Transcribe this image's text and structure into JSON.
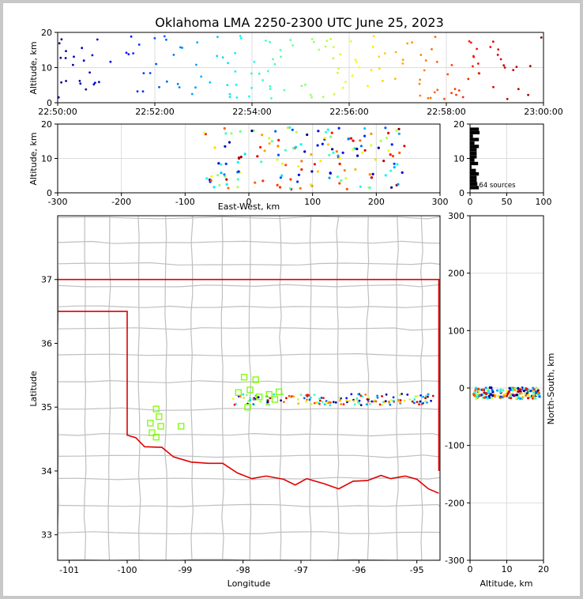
{
  "title": "Oklahoma LMA 2250-2300 UTC June 25, 2023",
  "colors": {
    "axes": "#000000",
    "grid": "#dddddd",
    "counties": "#bfbfbf",
    "state_border": "#e00000",
    "stations": "#7cfc00"
  },
  "chart_data": [
    {
      "panel": "time-height",
      "type": "scatter",
      "ylabel": "Altitude, km",
      "xlim": [
        "22:50:00",
        "23:00:00"
      ],
      "ylim": [
        0,
        20
      ],
      "xticks": [
        "22:50:00",
        "22:52:00",
        "22:54:00",
        "22:56:00",
        "22:58:00",
        "23:00:00"
      ],
      "yticks": [
        "0",
        "10",
        "20"
      ],
      "grid": true
    },
    {
      "panel": "east-west-height",
      "type": "scatter",
      "xlabel": "East-West, km",
      "ylabel": "Altitude, km",
      "xlim": [
        -300,
        300
      ],
      "ylim": [
        0,
        20
      ],
      "xticks": [
        "-300",
        "-200",
        "-100",
        "0",
        "100",
        "200",
        "300"
      ],
      "yticks": [
        "0",
        "10",
        "20"
      ],
      "grid": true
    },
    {
      "panel": "altitude-histogram",
      "type": "bar",
      "xlim": [
        0,
        100
      ],
      "ylim": [
        0,
        20
      ],
      "xticks": [
        "0",
        "50",
        "100"
      ],
      "yticks": [
        "0",
        "10",
        "20"
      ],
      "annotation": "164 sources",
      "grid": true
    },
    {
      "panel": "plan-view",
      "type": "scatter",
      "xlabel": "Longitude",
      "ylabel": "Latitude",
      "xlim": [
        -101.2,
        -94.6
      ],
      "ylim": [
        32.6,
        38.0
      ],
      "xticks": [
        "-101",
        "-100",
        "-99",
        "-98",
        "-97",
        "-96",
        "-95"
      ],
      "yticks": [
        "33",
        "34",
        "35",
        "36",
        "37"
      ],
      "stations": [
        [
          -99.6,
          34.75
        ],
        [
          -99.5,
          34.97
        ],
        [
          -99.45,
          34.85
        ],
        [
          -99.42,
          34.7
        ],
        [
          -99.5,
          34.53
        ],
        [
          -99.57,
          34.6
        ],
        [
          -99.07,
          34.7
        ],
        [
          -98.08,
          35.23
        ],
        [
          -97.98,
          35.47
        ],
        [
          -97.88,
          35.27
        ],
        [
          -97.78,
          35.43
        ],
        [
          -97.72,
          35.16
        ],
        [
          -97.55,
          35.2
        ],
        [
          -97.45,
          35.12
        ],
        [
          -97.38,
          35.24
        ],
        [
          -97.92,
          35.0
        ]
      ]
    },
    {
      "panel": "north-south-height",
      "type": "scatter",
      "xlabel": "Altitude, km",
      "ylabel": "North-South, km",
      "xlim": [
        0,
        20
      ],
      "ylim": [
        -300,
        300
      ],
      "xticks": [
        "0",
        "10",
        "20"
      ],
      "yticks": [
        "-300",
        "-200",
        "-100",
        "0",
        "100",
        "200",
        "300"
      ],
      "grid": true
    }
  ]
}
